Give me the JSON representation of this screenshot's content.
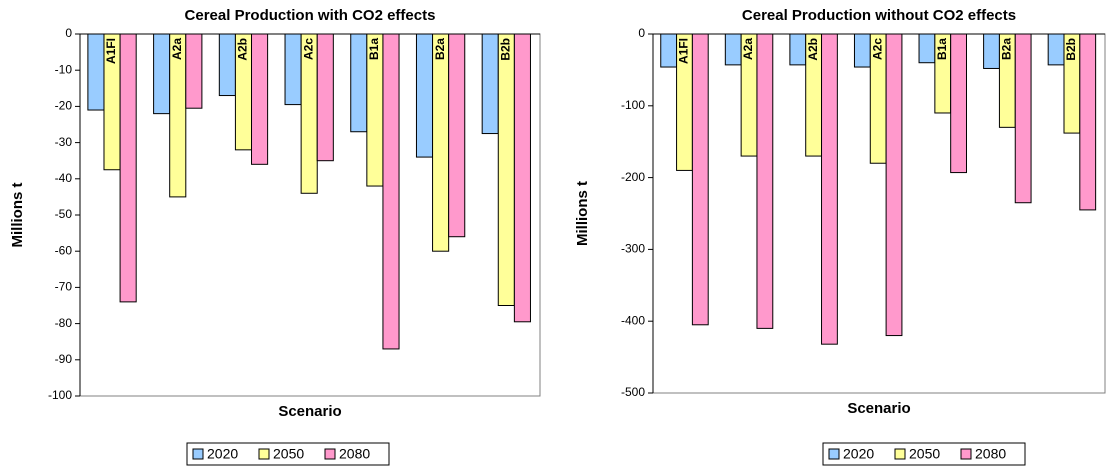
{
  "chart_data": [
    {
      "type": "bar",
      "title": "Cereal Production with CO2 effects",
      "x_label": "Scenario",
      "y_label": "Millions t",
      "categories": [
        "A1FI",
        "A2a",
        "A2b",
        "A2c",
        "B1a",
        "B2a",
        "B2b"
      ],
      "series": [
        {
          "name": "2020",
          "color": "#99ccff",
          "values": [
            -21,
            -22,
            -17,
            -19.5,
            -27,
            -34,
            -27.5
          ]
        },
        {
          "name": "2050",
          "color": "#ffff99",
          "values": [
            -37.5,
            -45,
            -32,
            -44,
            -42,
            -60,
            -75
          ]
        },
        {
          "name": "2080",
          "color": "#ff99cc",
          "values": [
            -74,
            -20.5,
            -36,
            -35,
            -87,
            -56,
            -79.5
          ]
        }
      ],
      "ylim": [
        -100,
        0
      ],
      "yticks": [
        0,
        -10,
        -20,
        -30,
        -40,
        -50,
        -60,
        -70,
        -80,
        -90,
        -100
      ],
      "legend": "bottom"
    },
    {
      "type": "bar",
      "title": "Cereal Production without CO2 effects",
      "x_label": "Scenario",
      "y_label": "Millions t",
      "categories": [
        "A1FI",
        "A2a",
        "A2b",
        "A2c",
        "B1a",
        "B2a",
        "B2b"
      ],
      "series": [
        {
          "name": "2020",
          "color": "#99ccff",
          "values": [
            -46,
            -43,
            -43,
            -46,
            -40,
            -48,
            -43
          ]
        },
        {
          "name": "2050",
          "color": "#ffff99",
          "values": [
            -190,
            -170,
            -170,
            -180,
            -110,
            -130,
            -138
          ]
        },
        {
          "name": "2080",
          "color": "#ff99cc",
          "values": [
            -405,
            -410,
            -432,
            -420,
            -193,
            -235,
            -245
          ]
        }
      ],
      "ylim": [
        -500,
        0
      ],
      "yticks": [
        0,
        -100,
        -200,
        -300,
        -400,
        -500
      ],
      "legend": "bottom"
    }
  ]
}
